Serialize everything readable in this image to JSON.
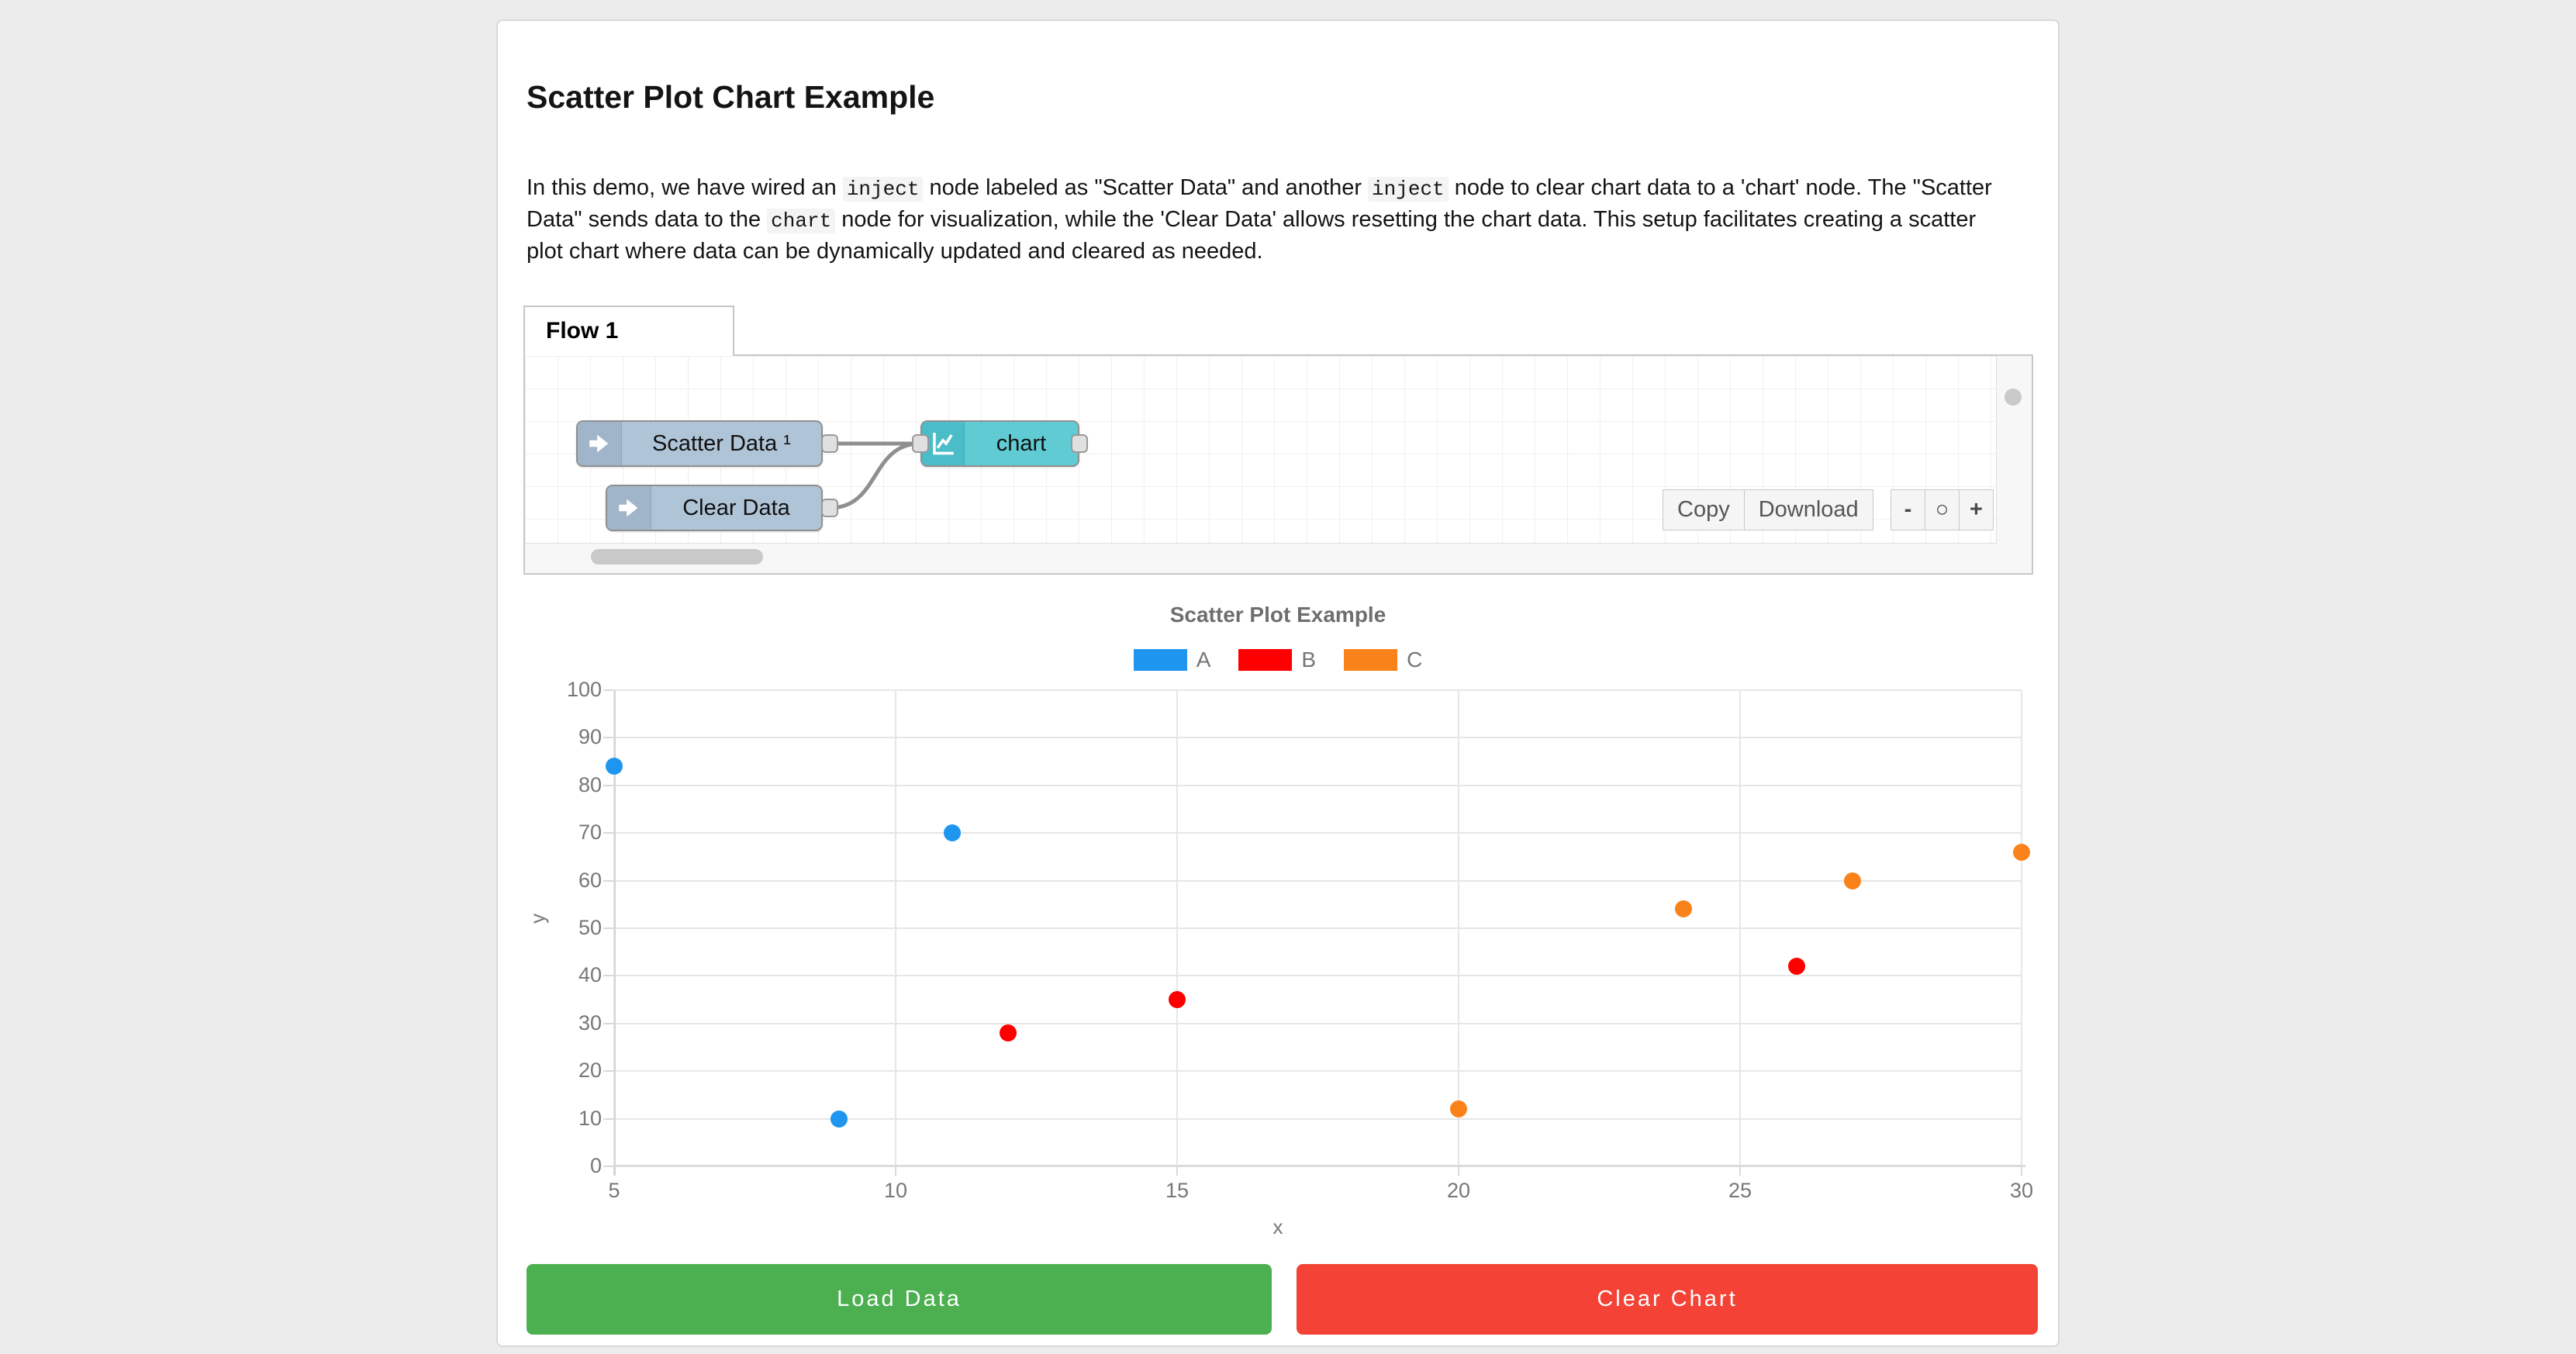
{
  "page": {
    "title": "Scatter Plot Chart Example"
  },
  "intro": {
    "segments": [
      {
        "type": "text",
        "text": "In this demo, we have wired an "
      },
      {
        "type": "code",
        "text": "inject"
      },
      {
        "type": "text",
        "text": " node labeled as \"Scatter Data\" and another "
      },
      {
        "type": "code",
        "text": "inject"
      },
      {
        "type": "text",
        "text": " node to clear chart data to a 'chart' node. The \"Scatter Data\" sends data to the "
      },
      {
        "type": "code",
        "text": "chart"
      },
      {
        "type": "text",
        "text": " node for visualization, while the 'Clear Data' allows resetting the chart data. This setup facilitates creating a scatter plot chart where data can be dynamically updated and cleared as needed."
      }
    ]
  },
  "flow": {
    "tab_label": "Flow 1",
    "nodes": [
      {
        "label": "Scatter Data ¹",
        "type": "inject"
      },
      {
        "label": "Clear Data",
        "type": "inject"
      },
      {
        "label": "chart",
        "type": "chart"
      }
    ],
    "toolbar": {
      "copy_label": "Copy",
      "download_label": "Download",
      "zoom_out_label": "-",
      "zoom_reset_label": "○",
      "zoom_in_label": "+"
    }
  },
  "chart_data": {
    "type": "scatter",
    "title": "Scatter Plot Example",
    "xlabel": "x",
    "ylabel": "y",
    "xlim": [
      5,
      30
    ],
    "ylim": [
      0,
      100
    ],
    "x_ticks": [
      5,
      10,
      15,
      20,
      25,
      30
    ],
    "y_ticks": [
      0,
      10,
      20,
      30,
      40,
      50,
      60,
      70,
      80,
      90,
      100
    ],
    "grid": true,
    "legend_position": "top",
    "series": [
      {
        "name": "A",
        "color": "#1E96F0",
        "points": [
          [
            5,
            84
          ],
          [
            9,
            10
          ],
          [
            11,
            70
          ]
        ]
      },
      {
        "name": "B",
        "color": "#FE0000",
        "points": [
          [
            12,
            28
          ],
          [
            15,
            35
          ],
          [
            26,
            42
          ]
        ]
      },
      {
        "name": "C",
        "color": "#F9821A",
        "points": [
          [
            20,
            12
          ],
          [
            24,
            54
          ],
          [
            27,
            60
          ],
          [
            30,
            66
          ]
        ]
      }
    ]
  },
  "actions": {
    "load_label": "Load Data",
    "load_color": "#4CAF50",
    "clear_label": "Clear Chart",
    "clear_color": "#F44336"
  }
}
